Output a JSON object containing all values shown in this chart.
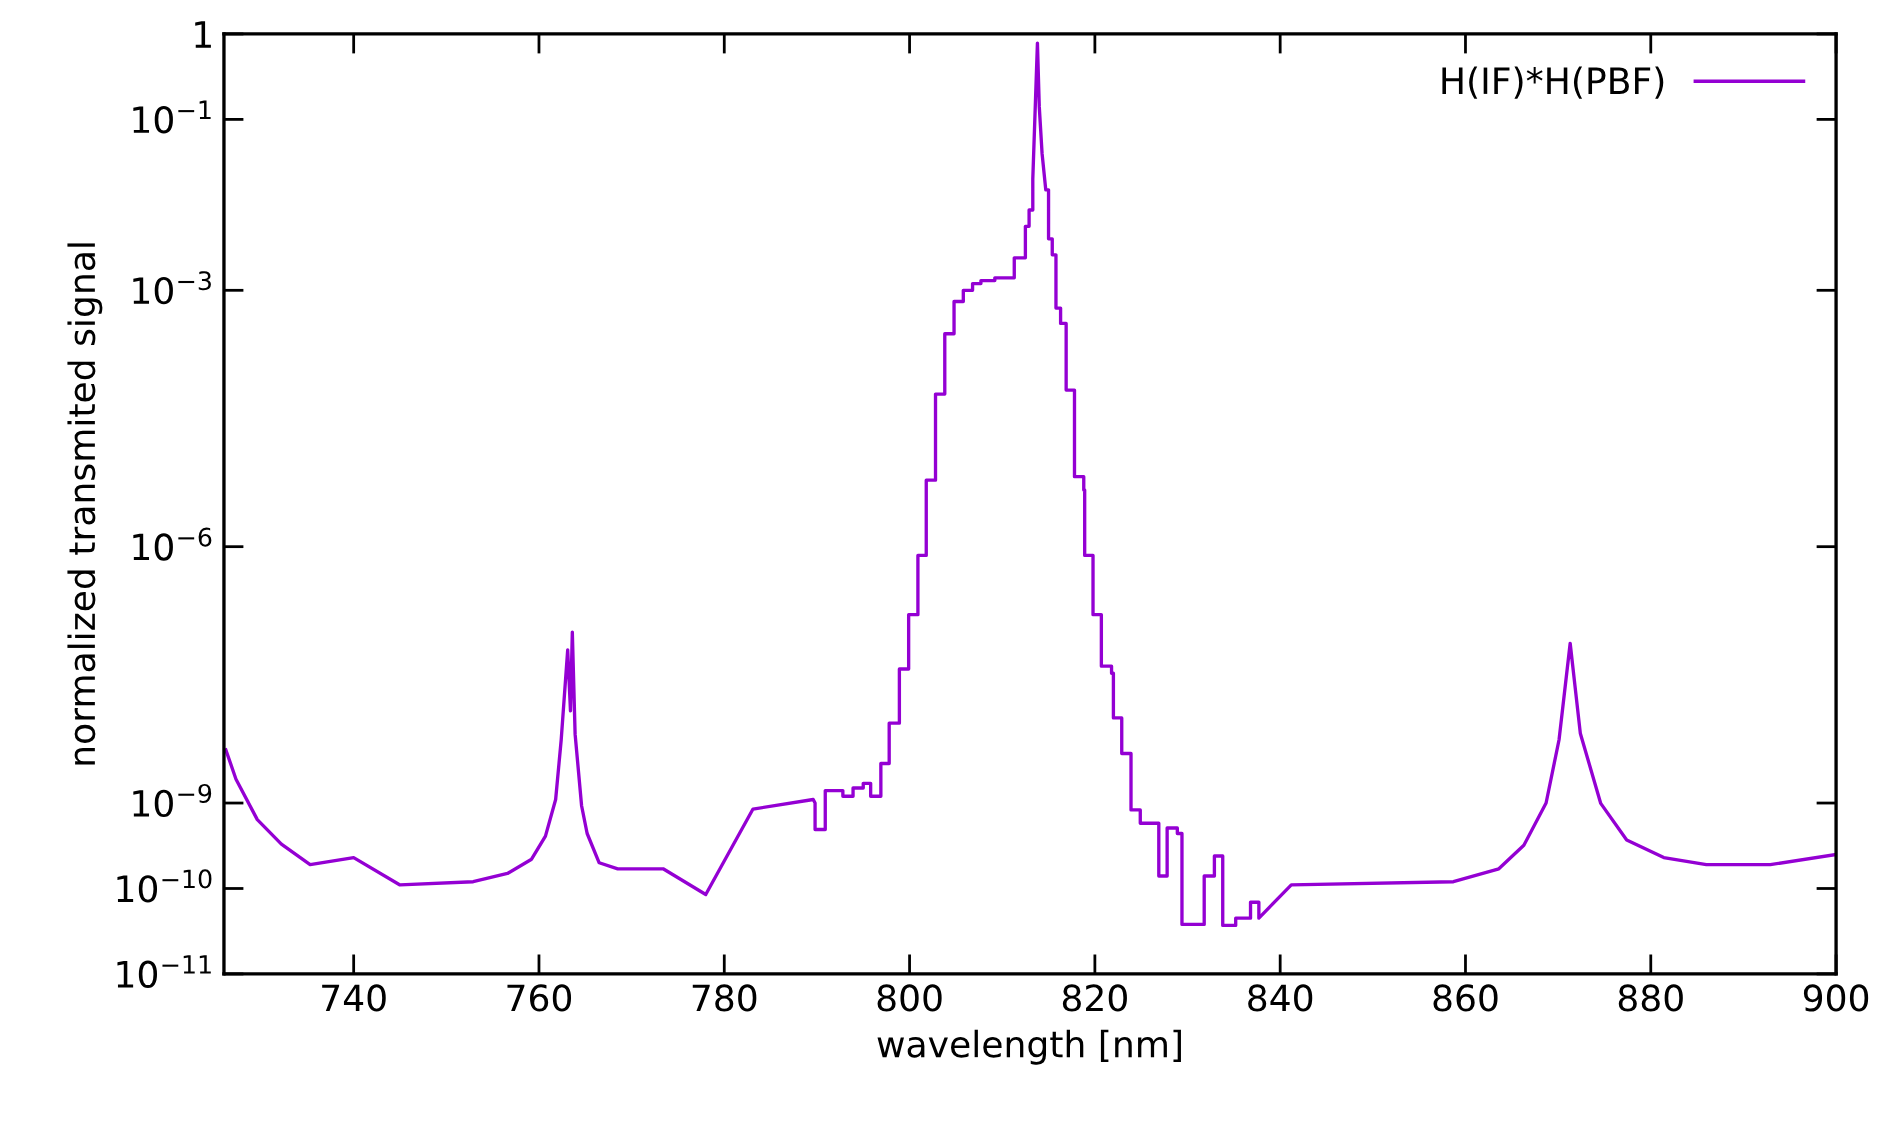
{
  "chart_data": {
    "type": "line",
    "xlabel": "wavelength [nm]",
    "ylabel": "normalized transmited signal",
    "log": "y",
    "grid": false,
    "legend": "top right",
    "marker": "none",
    "line_style": "solid",
    "xlim": [
      726,
      900
    ],
    "xticks": [
      740,
      760,
      780,
      800,
      820,
      840,
      860,
      880,
      900
    ],
    "ylim": [
      1e-11,
      1
    ],
    "yticks": [
      1,
      {
        "value": 0.1,
        "label": "10$^{−1}$"
      },
      {
        "value": 0.001,
        "label": "10$^{−3}$"
      },
      {
        "value": 1e-06,
        "label": "10$^{−6}$"
      },
      {
        "value": 1e-09,
        "label": "10$^{−9}$"
      },
      {
        "value": 1e-10,
        "label": "10$^{−10}$"
      },
      {
        "value": 1e-11,
        "label": "10$^{−11}$"
      }
    ],
    "series": [
      {
        "name": "H(IF)*H(PBF)",
        "color": "#9400d3",
        "x": [
          726.2,
          727.3,
          729.6,
          732.2,
          735.3,
          740,
          745,
          752.9,
          756.6,
          759.2,
          760.7,
          761.8,
          762.4,
          763.1,
          763.4,
          763.6,
          763.9,
          764.6,
          765.2,
          766.5,
          768.5,
          773.4,
          778,
          783.1,
          789.6,
          789.8,
          789.8,
          790.9,
          790.9,
          792.8,
          792.8,
          793.9,
          793.9,
          795,
          795,
          795.8,
          795.8,
          796.9,
          796.9,
          797.8,
          797.8,
          798.9,
          798.9,
          799.9,
          799.9,
          800.9,
          800.9,
          801.8,
          801.8,
          802.8,
          802.8,
          803.8,
          803.8,
          804.8,
          804.8,
          805.8,
          805.8,
          806.8,
          806.8,
          807.7,
          807.7,
          809.2,
          809.2,
          811.3,
          811.3,
          812.5,
          812.5,
          812.9,
          812.9,
          813.3,
          813.3,
          813.8,
          814.0,
          814.3,
          814.7,
          815.0,
          815.0,
          815.4,
          815.4,
          815.8,
          815.8,
          816.3,
          816.3,
          816.9,
          816.9,
          817.8,
          817.8,
          818.8,
          818.8,
          818.9,
          818.9,
          819.8,
          819.8,
          820.7,
          820.7,
          821.8,
          821.8,
          822,
          822,
          822.9,
          822.9,
          823.9,
          823.9,
          824.9,
          824.9,
          826.9,
          826.9,
          827.8,
          827.8,
          828.9,
          828.9,
          829.4,
          829.4,
          831.8,
          831.8,
          832.9,
          832.9,
          833.8,
          833.8,
          835.2,
          835.2,
          836.8,
          836.8,
          837.7,
          837.7,
          841.2,
          858.7,
          863.6,
          866.3,
          868.7,
          870.1,
          871.3,
          872.4,
          874.6,
          877.4,
          881.4,
          886,
          892.9,
          900
        ],
        "values": [
          4.2e-09,
          1.9e-09,
          6.4e-10,
          3.3e-10,
          1.9e-10,
          2.3e-10,
          1.1e-10,
          1.2e-10,
          1.5e-10,
          2.2e-10,
          4.1e-10,
          1.1e-09,
          5.5e-09,
          6.2e-08,
          1.2e-08,
          1e-07,
          6.4e-09,
          9.3e-10,
          4.4e-10,
          2e-10,
          1.7e-10,
          1.7e-10,
          8.5e-11,
          8.5e-10,
          1.1e-09,
          1e-09,
          4.9e-10,
          4.9e-10,
          1.4e-09,
          1.4e-09,
          1.2e-09,
          1.2e-09,
          1.5e-09,
          1.5e-09,
          1.7e-09,
          1.7e-09,
          1.2e-09,
          1.2e-09,
          2.9e-09,
          2.9e-09,
          8.6e-09,
          8.6e-09,
          3.7e-08,
          3.7e-08,
          1.6e-07,
          1.6e-07,
          7.9e-07,
          7.9e-07,
          6e-06,
          6e-06,
          6.1e-05,
          6.1e-05,
          0.00031,
          0.00031,
          0.00074,
          0.00074,
          0.001,
          0.001,
          0.0012,
          0.0012,
          0.0013,
          0.0013,
          0.0014,
          0.0014,
          0.0024,
          0.0024,
          0.0056,
          0.0056,
          0.0087,
          0.0087,
          0.02,
          0.78,
          0.14,
          0.04,
          0.015,
          0.015,
          0.004,
          0.004,
          0.0026,
          0.0026,
          0.00062,
          0.00062,
          0.00041,
          0.00041,
          6.8e-05,
          6.8e-05,
          6.6e-06,
          6.6e-06,
          4.6e-06,
          4.6e-06,
          7.9e-07,
          7.9e-07,
          1.6e-07,
          1.6e-07,
          4e-08,
          4e-08,
          3.3e-08,
          3.3e-08,
          9.9e-09,
          9.9e-09,
          3.8e-09,
          3.8e-09,
          8.3e-10,
          8.3e-10,
          5.8e-10,
          5.8e-10,
          1.4e-10,
          1.4e-10,
          5.1e-10,
          5.1e-10,
          4.4e-10,
          4.4e-10,
          3.8e-11,
          3.8e-11,
          1.4e-10,
          1.4e-10,
          2.4e-10,
          2.4e-10,
          3.7e-11,
          3.7e-11,
          4.5e-11,
          4.5e-11,
          6.9e-11,
          6.9e-11,
          4.5e-11,
          1.1e-10,
          1.2e-10,
          1.7e-10,
          3.2e-10,
          1e-09,
          5.5e-09,
          7.4e-08,
          6.5e-09,
          9.9e-10,
          3.7e-10,
          2.3e-10,
          1.9e-10,
          1.9e-10,
          2.5e-10
        ]
      }
    ]
  }
}
